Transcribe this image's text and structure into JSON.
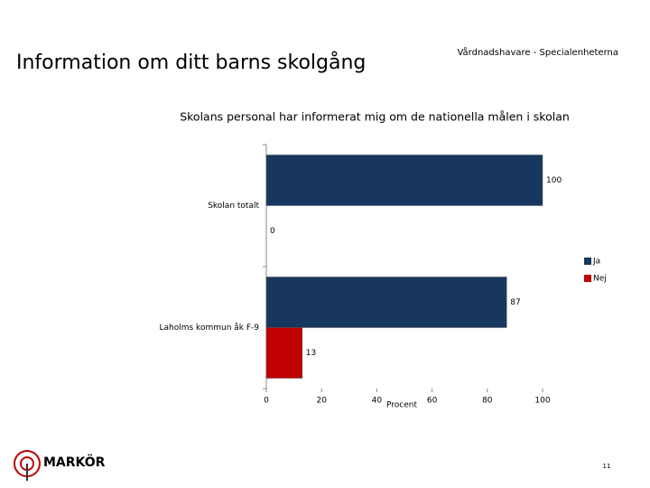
{
  "slide": {
    "title": "Information om ditt barns skolgång",
    "subtitle": "Vårdnadshavare - Specialenheterna",
    "page": "11",
    "logo": "MARKÖR"
  },
  "chart_data": {
    "type": "hbar",
    "title": "Skolans personal har informerat mig om de nationella målen i skolan",
    "categories": [
      "Skolan totalt",
      "Laholms kommun åk F-9"
    ],
    "series": [
      {
        "name": "Ja",
        "color": "#17375e",
        "values": [
          100,
          87
        ]
      },
      {
        "name": "Nej",
        "color": "#c00000",
        "values": [
          0,
          13
        ]
      }
    ],
    "x_label": "Procent",
    "xlim": [
      0,
      100
    ],
    "xticks": [
      0,
      20,
      40,
      60,
      80,
      100
    ],
    "legend": "right"
  }
}
